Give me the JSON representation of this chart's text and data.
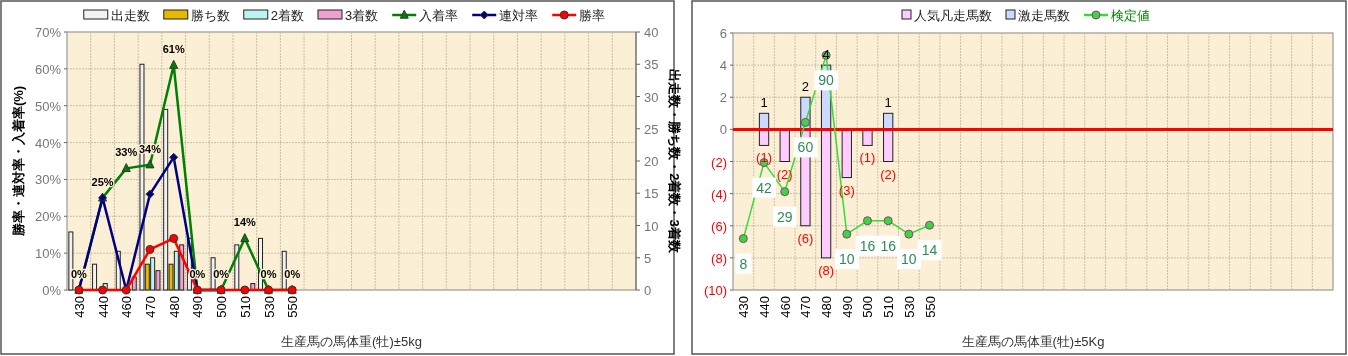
{
  "chart_data": [
    {
      "type": "bar",
      "xlabel": "生産馬の馬体重(牡)±5kg",
      "ylabel": "勝率・連対率・入着率(%)",
      "y2label": "出走数・勝ち数・2着数・3着数",
      "categories": [
        "430",
        "440",
        "460",
        "470",
        "480",
        "490",
        "500",
        "510",
        "530",
        "550",
        null,
        null,
        null,
        null,
        null,
        null,
        null,
        null,
        null,
        null,
        null,
        null,
        null,
        null
      ],
      "ylim": [
        0,
        70
      ],
      "yticks": [
        {
          "value": 0,
          "label": "0%"
        },
        {
          "value": 10,
          "label": "10%"
        },
        {
          "value": 20,
          "label": "20%"
        },
        {
          "value": 30,
          "label": "30%"
        },
        {
          "value": 40,
          "label": "40%"
        },
        {
          "value": 50,
          "label": "50%"
        },
        {
          "value": 60,
          "label": "60%"
        },
        {
          "value": 70,
          "label": "70%"
        }
      ],
      "y2lim": [
        0,
        40
      ],
      "y2ticks": [
        0,
        5,
        10,
        15,
        20,
        25,
        30,
        35,
        40
      ],
      "grid": true,
      "legend": "top",
      "series": [
        {
          "name": "出走数",
          "axis": "y2",
          "color": "#f2f2f2",
          "values": [
            9,
            4,
            6,
            35,
            28,
            8,
            5,
            7,
            8,
            6,
            null,
            null,
            null,
            null,
            null,
            null,
            null,
            null,
            null,
            null,
            null,
            null,
            null,
            null
          ]
        },
        {
          "name": "勝ち数",
          "axis": "y2",
          "color": "#e6b800",
          "values": [
            0,
            0,
            0,
            4,
            4,
            0,
            0,
            0,
            0,
            0,
            null,
            null,
            null,
            null,
            null,
            null,
            null,
            null,
            null,
            null,
            null,
            null,
            null,
            null
          ]
        },
        {
          "name": "2着数",
          "axis": "y2",
          "color": "#bff2f2",
          "values": [
            0,
            1,
            0,
            5,
            6,
            0,
            0,
            0,
            0,
            0,
            null,
            null,
            null,
            null,
            null,
            null,
            null,
            null,
            null,
            null,
            null,
            null,
            null,
            null
          ]
        },
        {
          "name": "3着数",
          "axis": "y2",
          "color": "#f0a0d0",
          "values": [
            0,
            0,
            2,
            3,
            7,
            0,
            0,
            1,
            0,
            0,
            null,
            null,
            null,
            null,
            null,
            null,
            null,
            null,
            null,
            null,
            null,
            null,
            null,
            null
          ]
        },
        {
          "name": "入着率",
          "type": "line",
          "marker": "triangle",
          "color": "#008000",
          "values": [
            0,
            25,
            33,
            34,
            61,
            0,
            0,
            14,
            0,
            0,
            null,
            null,
            null,
            null,
            null,
            null,
            null,
            null,
            null,
            null,
            null,
            null,
            null,
            null
          ],
          "value_labels": [
            "0%",
            "25%",
            "33%",
            "34%",
            "61%",
            "0%",
            "0%",
            "14%",
            "0%",
            "0%",
            null,
            null,
            null,
            null,
            null,
            null,
            null,
            null,
            null,
            null,
            null,
            null,
            null,
            null
          ]
        },
        {
          "name": "連対率",
          "type": "line",
          "marker": "diamond",
          "color": "#000080",
          "values": [
            0,
            25,
            0,
            26,
            36,
            0,
            0,
            null,
            null,
            null,
            null,
            null,
            null,
            null,
            null,
            null,
            null,
            null,
            null,
            null,
            null,
            null,
            null,
            null
          ]
        },
        {
          "name": "勝率",
          "type": "line",
          "marker": "circle",
          "color": "#ff0000",
          "values": [
            0,
            0,
            0,
            11,
            14,
            0,
            0,
            0,
            0,
            0,
            null,
            null,
            null,
            null,
            null,
            null,
            null,
            null,
            null,
            null,
            null,
            null,
            null,
            null
          ]
        }
      ]
    },
    {
      "type": "bar",
      "xlabel": "生産馬の馬体重(牡)±5Kg",
      "stacked": true,
      "categories": [
        "430",
        "440",
        "460",
        "470",
        "480",
        "490",
        "500",
        "510",
        "530",
        "550",
        null,
        null,
        null,
        null,
        null,
        null,
        null,
        null,
        null,
        null,
        null,
        null,
        null,
        null,
        null,
        null,
        null,
        null,
        null
      ],
      "ylim": [
        -10,
        6
      ],
      "yticks": [
        {
          "value": -10,
          "label": "(10)"
        },
        {
          "value": -8,
          "label": "(8)"
        },
        {
          "value": -6,
          "label": "(6)"
        },
        {
          "value": -4,
          "label": "(4)"
        },
        {
          "value": -2,
          "label": "(2)"
        },
        0,
        2,
        4,
        6
      ],
      "y2lim": [
        -15,
        100
      ],
      "grid": true,
      "legend": "top",
      "ref_lines": [
        {
          "axis": "y",
          "value": 0,
          "color": "#ff0000"
        }
      ],
      "series": [
        {
          "name": "人気凡走馬数",
          "color": "#ffccff",
          "values": [
            null,
            -1,
            -2,
            -6,
            -8,
            -3,
            -1,
            -2,
            null,
            null,
            null,
            null,
            null,
            null,
            null,
            null,
            null,
            null,
            null,
            null,
            null,
            null,
            null,
            null,
            null,
            null,
            null,
            null,
            null
          ],
          "value_labels": [
            null,
            "(1)",
            "(2)",
            "(6)",
            "(8)",
            "(3)",
            "(1)",
            "(2)",
            null,
            null,
            null,
            null,
            null,
            null,
            null,
            null,
            null,
            null,
            null,
            null,
            null,
            null,
            null,
            null,
            null,
            null,
            null,
            null,
            null
          ]
        },
        {
          "name": "激走馬数",
          "color": "#cdd9ff",
          "values": [
            null,
            1,
            null,
            2,
            4,
            null,
            null,
            1,
            null,
            null,
            null,
            null,
            null,
            null,
            null,
            null,
            null,
            null,
            null,
            null,
            null,
            null,
            null,
            null,
            null,
            null,
            null,
            null,
            null
          ],
          "value_labels": [
            null,
            "1",
            null,
            "2",
            "4",
            null,
            null,
            "1",
            null,
            null,
            null,
            null,
            null,
            null,
            null,
            null,
            null,
            null,
            null,
            null,
            null,
            null,
            null,
            null,
            null,
            null,
            null,
            null,
            null
          ]
        },
        {
          "name": "検定値",
          "type": "line",
          "axis": "y2",
          "marker": "circle",
          "color": "#33dd33",
          "values": [
            8,
            42,
            29,
            60,
            90,
            10,
            16,
            16,
            10,
            14,
            null,
            null,
            null,
            null,
            null,
            null,
            null,
            null,
            null,
            null,
            null,
            null,
            null,
            null,
            null,
            null,
            null,
            null,
            null
          ],
          "value_labels": [
            "8",
            "42",
            "29",
            "60",
            "90",
            "10",
            "16",
            "16",
            "10",
            "14",
            null,
            null,
            null,
            null,
            null,
            null,
            null,
            null,
            null,
            null,
            null,
            null,
            null,
            null,
            null,
            null,
            null,
            null,
            null
          ]
        }
      ]
    }
  ]
}
